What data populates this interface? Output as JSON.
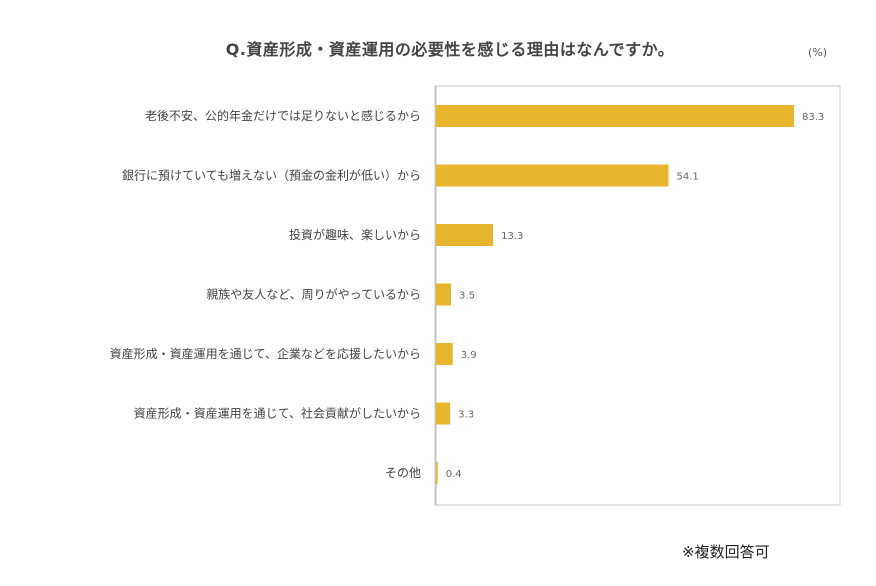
{
  "chart_data": {
    "type": "bar",
    "orientation": "horizontal",
    "title": "Q.資産形成・資産運用の必要性を感じる理由はなんですか。",
    "unit": "(%)",
    "categories": [
      "老後不安、公的年金だけでは足りないと感じるから",
      "銀行に預けていても増えない（預金の金利が低い）から",
      "投資が趣味、楽しいから",
      "親族や友人など、周りがやっているから",
      "資産形成・資産運用を通じて、企業などを応援したいから",
      "資産形成・資産運用を通じて、社会貢献がしたいから",
      "その他"
    ],
    "values": [
      83.3,
      54.1,
      13.3,
      3.5,
      3.9,
      3.3,
      0.4
    ],
    "value_labels": [
      "83.3",
      "54.1",
      "13.3",
      "3.5",
      "3.9",
      "3.3",
      "0.4"
    ],
    "xlim": [
      0,
      94
    ],
    "grid": false,
    "bar_color": "#E8B52E",
    "frame_color": "#C8C8C8",
    "note": "※複数回答可"
  }
}
